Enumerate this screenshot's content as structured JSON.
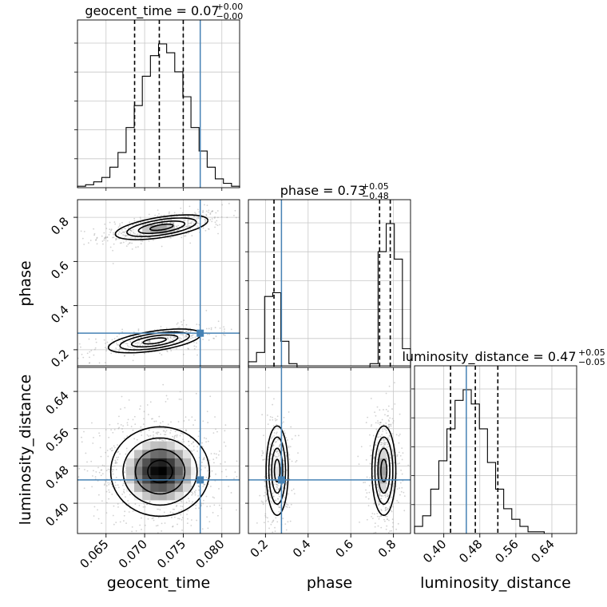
{
  "chart_data": {
    "type": "corner",
    "parameters": [
      "geocent_time",
      "phase",
      "luminosity_distance"
    ],
    "axis_labels": [
      "geocent_time",
      "phase",
      "luminosity_distance"
    ],
    "ranges": [
      [
        0.0613,
        0.0823
      ],
      [
        0.12,
        0.88
      ],
      [
        0.335,
        0.695
      ]
    ],
    "ticks": [
      {
        "values": [
          0.065,
          0.07,
          0.075,
          0.08
        ],
        "labels": [
          "0.065",
          "0.070",
          "0.075",
          "0.080"
        ]
      },
      {
        "values": [
          0.2,
          0.4,
          0.6,
          0.8
        ],
        "labels": [
          "0.2",
          "0.4",
          "0.6",
          "0.8"
        ]
      },
      {
        "values": [
          0.4,
          0.48,
          0.56,
          0.64
        ],
        "labels": [
          "0.40",
          "0.48",
          "0.56",
          "0.64"
        ]
      }
    ],
    "titles": [
      {
        "param": "geocent_time",
        "value": "0.07",
        "plus": "+0.00",
        "minus": "−0.00"
      },
      {
        "param": "phase",
        "value": "0.73",
        "plus": "+0.05",
        "minus": "−0.48"
      },
      {
        "param": "luminosity_distance",
        "value": "0.47",
        "plus": "+0.05",
        "minus": "−0.05"
      }
    ],
    "truths": [
      0.0772,
      0.275,
      0.45
    ],
    "quantiles": [
      [
        0.0687,
        0.0719,
        0.075
      ],
      [
        0.24,
        0.735,
        0.785
      ],
      [
        0.415,
        0.47,
        0.52
      ]
    ],
    "histograms": [
      {
        "bin_edges_start": 0.0613,
        "bin_width": 0.00105,
        "counts": [
          1,
          2,
          4,
          7,
          14,
          24,
          41,
          56,
          76,
          90,
          98,
          92,
          79,
          62,
          41,
          25,
          14,
          6,
          3,
          1
        ]
      },
      {
        "bin_edges_start": 0.12,
        "bin_width": 0.038,
        "counts": [
          3,
          8,
          38,
          40,
          14,
          2,
          0,
          0,
          0,
          0,
          0,
          0,
          0,
          0,
          0,
          2,
          62,
          77,
          58,
          10
        ]
      },
      {
        "bin_edges_start": 0.335,
        "bin_width": 0.018,
        "counts": [
          4,
          10,
          25,
          41,
          59,
          75,
          81,
          73,
          59,
          40,
          25,
          14,
          8,
          4,
          1,
          1
        ]
      }
    ],
    "pairs": [
      {
        "x": "geocent_time",
        "y": "phase",
        "modes": [
          {
            "cx": 0.0722,
            "cy": 0.755,
            "sx": 0.003,
            "sy": 0.028,
            "rho": 0.55,
            "weight": 0.6
          },
          {
            "cx": 0.0713,
            "cy": 0.24,
            "sx": 0.003,
            "sy": 0.027,
            "rho": 0.55,
            "weight": 0.4
          }
        ]
      },
      {
        "x": "geocent_time",
        "y": "luminosity_distance",
        "modes": [
          {
            "cx": 0.072,
            "cy": 0.468,
            "sx": 0.0032,
            "sy": 0.048,
            "rho": 0.0,
            "weight": 1.0
          }
        ]
      },
      {
        "x": "phase",
        "y": "luminosity_distance",
        "modes": [
          {
            "cx": 0.255,
            "cy": 0.47,
            "sx": 0.026,
            "sy": 0.048,
            "rho": 0.0,
            "weight": 0.4
          },
          {
            "cx": 0.755,
            "cy": 0.47,
            "sx": 0.028,
            "sy": 0.048,
            "rho": 0.0,
            "weight": 0.6
          }
        ]
      }
    ],
    "colors": {
      "truth": "#4682b4",
      "hist": "#000000",
      "grid": "#c8c8c8",
      "scatter": "#9a9a9a"
    }
  }
}
